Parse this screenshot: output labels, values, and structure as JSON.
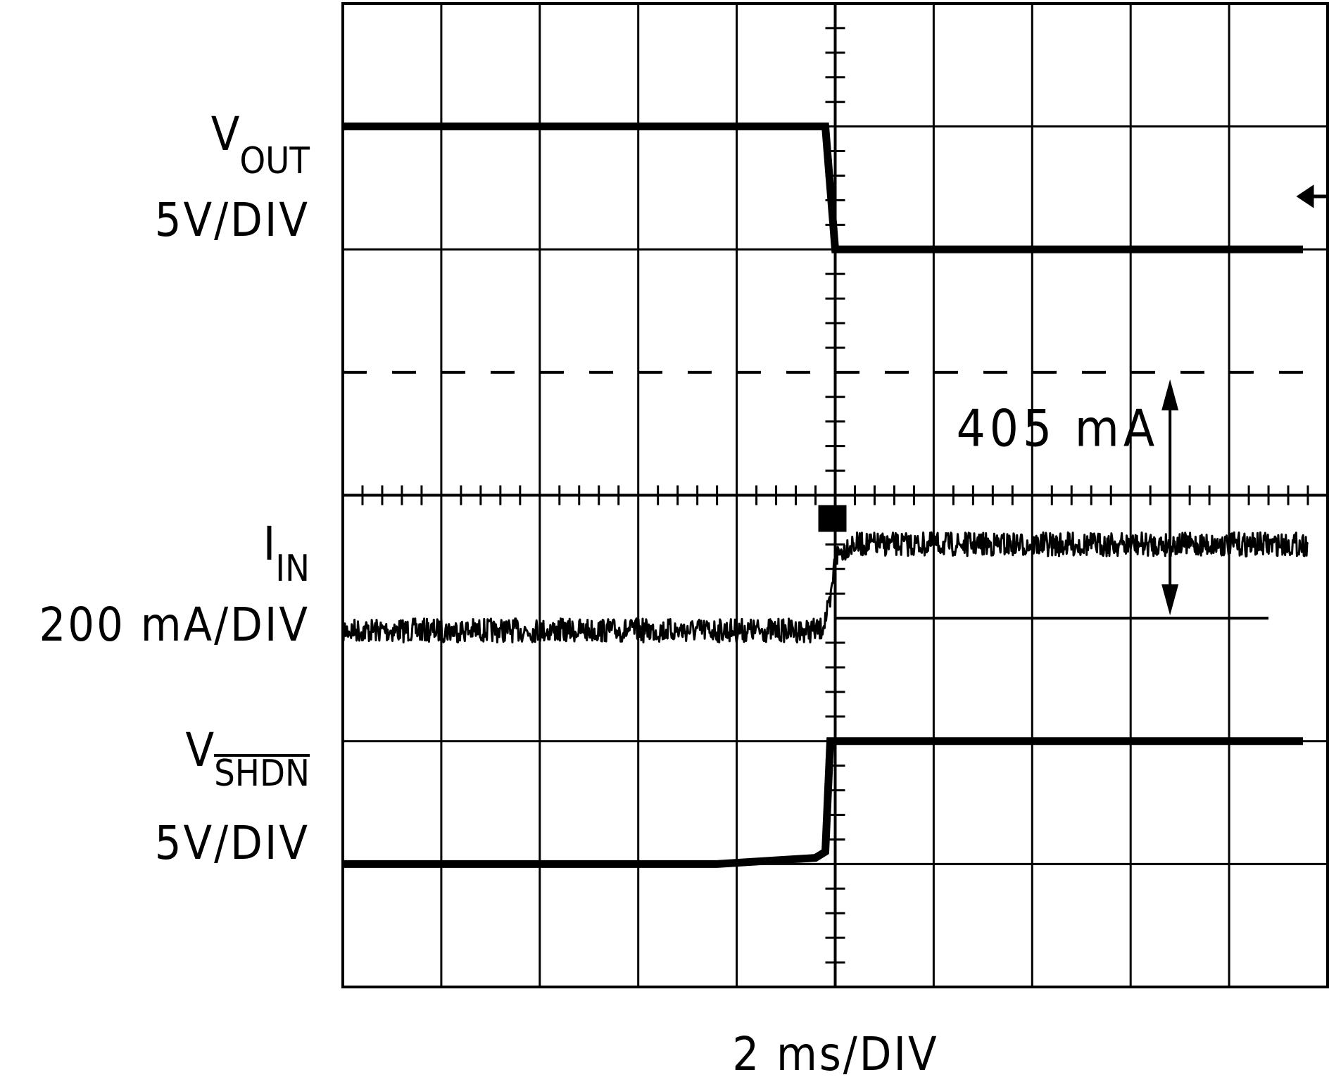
{
  "chart_data": {
    "type": "line",
    "title": "",
    "xlabel": "2 ms/DIV",
    "x_divisions": 10,
    "y_divisions": 8,
    "grid": true,
    "trigger_x_div": 5,
    "channels": [
      {
        "name": "V",
        "subscript": "OUT",
        "overline": false,
        "scale": "5V/DIV",
        "points": [
          [
            0,
            7.0
          ],
          [
            4.9,
            7.0
          ],
          [
            5.0,
            6.0
          ],
          [
            10.0,
            6.0
          ]
        ]
      },
      {
        "name": "I",
        "subscript": "IN",
        "overline": false,
        "scale": "200 mA/DIV",
        "points": [
          [
            0,
            2.9
          ],
          [
            4.85,
            2.9
          ],
          [
            4.95,
            3.1
          ],
          [
            5.0,
            3.5
          ],
          [
            5.15,
            3.6
          ],
          [
            10.0,
            3.6
          ]
        ],
        "noisy": true
      },
      {
        "name": "V",
        "subscript": "SHDN",
        "overline": true,
        "scale": "5V/DIV",
        "points": [
          [
            0,
            1.0
          ],
          [
            3.8,
            1.0
          ],
          [
            4.8,
            1.05
          ],
          [
            4.9,
            1.1
          ],
          [
            4.95,
            2.0
          ],
          [
            5.8,
            2.0
          ],
          [
            10.0,
            2.0
          ]
        ]
      }
    ],
    "reference_levels": [
      {
        "kind": "dashed",
        "y_div": 5.0
      },
      {
        "kind": "solid",
        "y_div": 3.0,
        "x_start_div": 5.0
      }
    ],
    "annotations": [
      {
        "text": "405 mA",
        "arrow_x_div": 8.4,
        "from_y_div": 5.0,
        "to_y_div": 3.0
      }
    ]
  }
}
